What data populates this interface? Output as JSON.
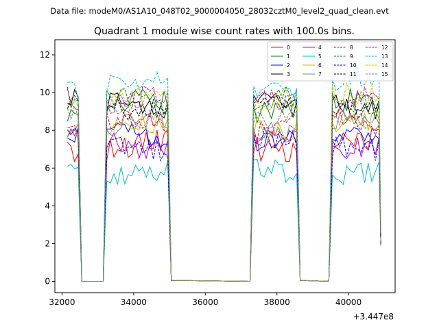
{
  "chart_data": {
    "type": "line",
    "suptitle": "Data file: modeM0/AS1A10_048T02_9000004050_28032cztM0_level2_quad_clean.evt",
    "title": "Quadrant 1 module wise count rates with 100.0s bins.",
    "xlabel": "",
    "ylabel": "",
    "x_offset_label": "+3.447e8",
    "xlim": [
      31800,
      41300
    ],
    "ylim": [
      -0.6,
      12.8
    ],
    "xticks": [
      32000,
      34000,
      36000,
      38000,
      40000
    ],
    "xtick_labels": [
      "32000",
      "34000",
      "36000",
      "38000",
      "40000"
    ],
    "yticks": [
      0,
      2,
      4,
      6,
      8,
      10,
      12
    ],
    "ytick_labels": [
      "0",
      "2",
      "4",
      "6",
      "8",
      "10",
      "12"
    ],
    "bin_width": 100,
    "segments": [
      {
        "start": 32150,
        "end": 32450
      },
      {
        "start": 33250,
        "end": 34950
      },
      {
        "start": 37350,
        "end": 38550
      },
      {
        "start": 39550,
        "end": 40850
      }
    ],
    "gap_value": 0,
    "legend_position": "upper-right",
    "series": [
      {
        "name": "0",
        "level": 7.2,
        "color": "#ff0000",
        "dash": "solid"
      },
      {
        "name": "1",
        "level": 9.3,
        "color": "#008000",
        "dash": "solid"
      },
      {
        "name": "2",
        "level": 7.5,
        "color": "#0000ff",
        "dash": "solid"
      },
      {
        "name": "3",
        "level": 9.3,
        "color": "#000000",
        "dash": "solid"
      },
      {
        "name": "4",
        "level": 7.4,
        "color": "#bf00bf",
        "dash": "solid"
      },
      {
        "name": "5",
        "level": 5.9,
        "color": "#00bfbf",
        "dash": "solid"
      },
      {
        "name": "6",
        "level": 8.3,
        "color": "#bfbf00",
        "dash": "solid"
      },
      {
        "name": "7",
        "level": 8.2,
        "color": "#808080",
        "dash": "solid"
      },
      {
        "name": "8",
        "level": 8.2,
        "color": "#ff0000",
        "dash": "dashed"
      },
      {
        "name": "9",
        "level": 9.5,
        "color": "#008000",
        "dash": "dashed"
      },
      {
        "name": "10",
        "level": 7.3,
        "color": "#0000ff",
        "dash": "dashed"
      },
      {
        "name": "11",
        "level": 9.4,
        "color": "#000000",
        "dash": "dashed"
      },
      {
        "name": "12",
        "level": 9.8,
        "color": "#bf00bf",
        "dash": "dashed"
      },
      {
        "name": "13",
        "level": 10.5,
        "color": "#00bfbf",
        "dash": "dashed"
      },
      {
        "name": "14",
        "level": 9.6,
        "color": "#bfbf00",
        "dash": "dashed"
      },
      {
        "name": "15",
        "level": 8.5,
        "color": "#808080",
        "dash": "dashed"
      }
    ]
  }
}
